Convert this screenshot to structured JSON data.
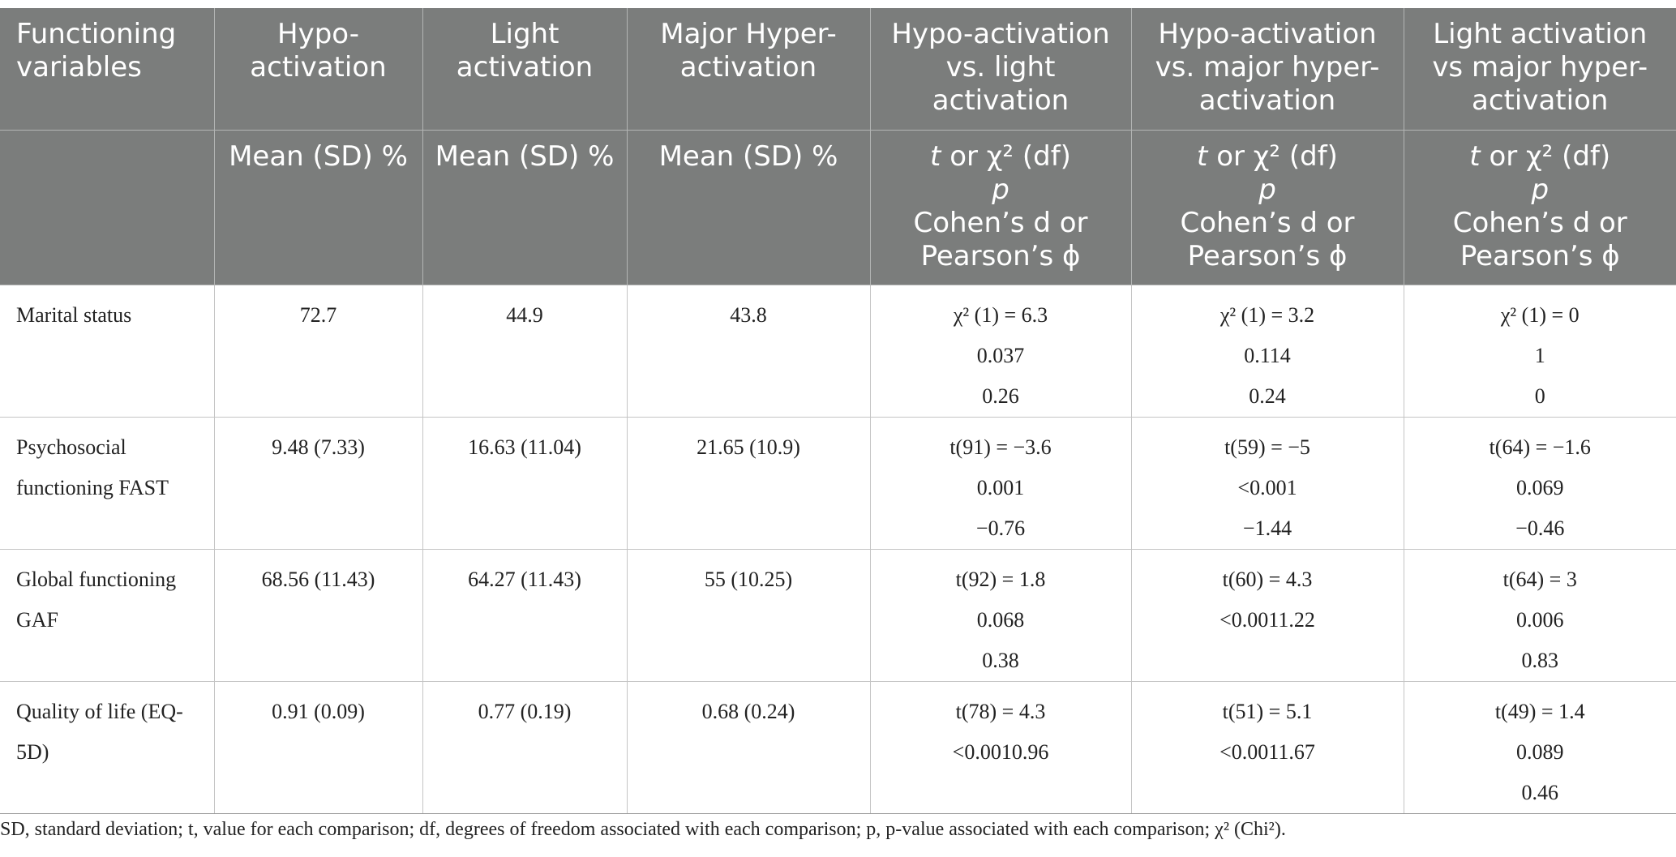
{
  "header_row1": [
    "Functioning variables",
    "Hypo-activation",
    "Light activation",
    "Major Hyper-activation",
    "Hypo-activation vs. light activation",
    "Hypo-activation vs. major hyper-activation",
    "Light activation vs major hyper-activation"
  ],
  "header_row2": {
    "mean_sd_1": "Mean (SD) %",
    "mean_sd_2": "Mean (SD) %",
    "mean_sd_3": "Mean (SD) %",
    "stat_t": "t",
    "stat_or_chi": " or χ² (df)",
    "stat_p": "p",
    "stat_cohen": "Cohen’s d or",
    "stat_pearson": "Pearson’s ϕ"
  },
  "rows": [
    {
      "label": "Marital status",
      "hypo": "72.7",
      "light": "44.9",
      "major": "43.8",
      "cmp1": [
        "χ² (1) = 6.3",
        "0.037",
        "0.26"
      ],
      "cmp2": [
        "χ² (1) = 3.2",
        "0.114",
        "0.24"
      ],
      "cmp3": [
        "χ² (1) = 0",
        "1",
        "0"
      ]
    },
    {
      "label": "Psychosocial functioning FAST",
      "hypo": "9.48 (7.33)",
      "light": "16.63 (11.04)",
      "major": "21.65 (10.9)",
      "cmp1": [
        "t(91) = −3.6",
        "0.001",
        "−0.76"
      ],
      "cmp2": [
        "t(59) = −5",
        "<0.001",
        "−1.44"
      ],
      "cmp3": [
        "t(64) = −1.6",
        "0.069",
        "−0.46"
      ]
    },
    {
      "label": "Global functioning GAF",
      "hypo": "68.56 (11.43)",
      "light": "64.27 (11.43)",
      "major": "55 (10.25)",
      "cmp1": [
        "t(92) = 1.8",
        "0.068",
        "0.38"
      ],
      "cmp2": [
        "t(60) = 4.3",
        "<0.0011.22",
        ""
      ],
      "cmp3": [
        "t(64) = 3",
        "0.006",
        "0.83"
      ]
    },
    {
      "label": "Quality of life (EQ-5D)",
      "hypo": "0.91 (0.09)",
      "light": "0.77 (0.19)",
      "major": "0.68 (0.24)",
      "cmp1": [
        "t(78) = 4.3",
        "<0.0010.96",
        ""
      ],
      "cmp2": [
        "t(51) = 5.1",
        "<0.0011.67",
        ""
      ],
      "cmp3": [
        "t(49) = 1.4",
        "0.089",
        "0.46"
      ]
    }
  ],
  "footnote": "SD, standard deviation; t, value for each comparison; df, degrees of freedom associated with each comparison; p, p-value associated with each comparison; χ² (Chi²)."
}
